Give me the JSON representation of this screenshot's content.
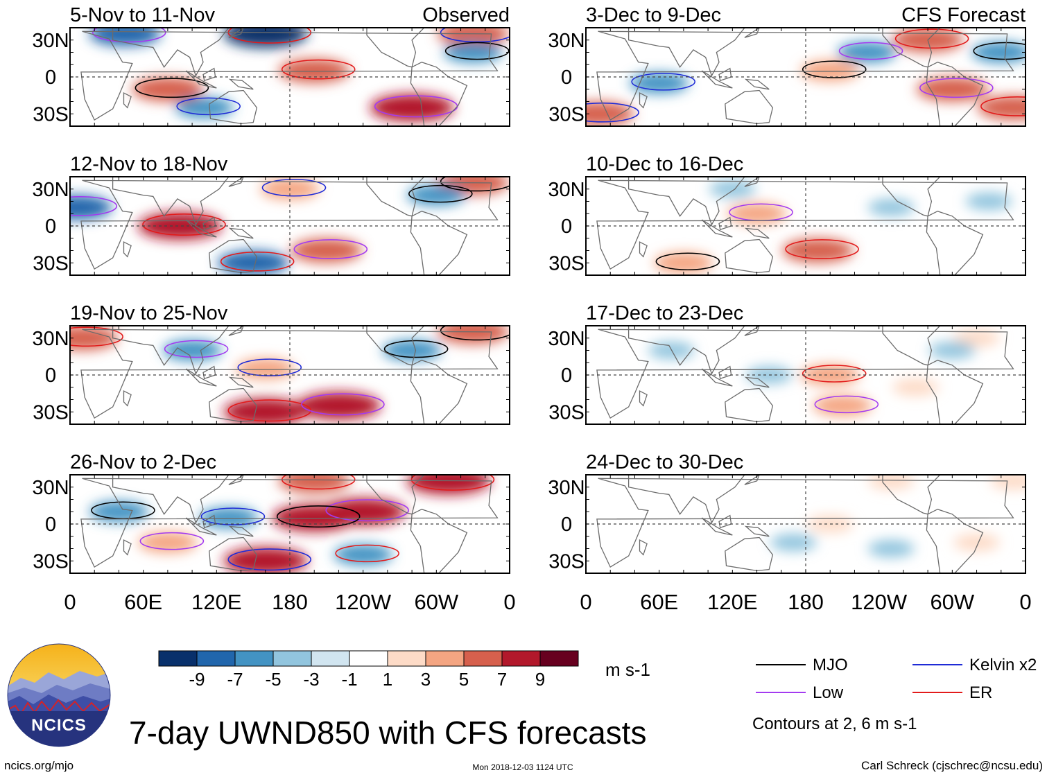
{
  "chart_data": {
    "type": "heatmap",
    "title": "7-day UWND850 with CFS forecasts",
    "variable": "850-hPa zonal wind anomaly",
    "units": "m s-1",
    "x_ticks": [
      "0",
      "60E",
      "120E",
      "180",
      "120W",
      "60W",
      "0"
    ],
    "y_ticks": [
      "30N",
      "0",
      "30S"
    ],
    "columns": [
      {
        "label": "Observed",
        "panels": [
          {
            "period": "5-Nov to 11-Nov",
            "anomaly_centers": [
              {
                "lon": 200,
                "lat": 5,
                "value": 7
              },
              {
                "lon": 280,
                "lat": -25,
                "value": 9
              },
              {
                "lon": 80,
                "lat": -10,
                "value": 7
              },
              {
                "lon": 330,
                "lat": 35,
                "value": 7
              },
              {
                "lon": 160,
                "lat": 35,
                "value": -9
              },
              {
                "lon": 45,
                "lat": 35,
                "value": -7
              },
              {
                "lon": 330,
                "lat": 20,
                "value": -5
              },
              {
                "lon": 110,
                "lat": -25,
                "value": -5
              }
            ]
          },
          {
            "period": "12-Nov to 18-Nov",
            "anomaly_centers": [
              {
                "lon": 90,
                "lat": 0,
                "value": 9
              },
              {
                "lon": 210,
                "lat": -20,
                "value": 7
              },
              {
                "lon": 330,
                "lat": 35,
                "value": 7
              },
              {
                "lon": 180,
                "lat": 30,
                "value": 5
              },
              {
                "lon": 150,
                "lat": -30,
                "value": -7
              },
              {
                "lon": 5,
                "lat": 15,
                "value": -7
              },
              {
                "lon": 300,
                "lat": 25,
                "value": -5
              }
            ]
          },
          {
            "period": "19-Nov to 25-Nov",
            "anomaly_centers": [
              {
                "lon": 160,
                "lat": -30,
                "value": 9
              },
              {
                "lon": 220,
                "lat": -25,
                "value": 9
              },
              {
                "lon": 330,
                "lat": 35,
                "value": 7
              },
              {
                "lon": 160,
                "lat": 5,
                "value": 5
              },
              {
                "lon": 10,
                "lat": 30,
                "value": 7
              },
              {
                "lon": 100,
                "lat": 20,
                "value": -5
              },
              {
                "lon": 280,
                "lat": 20,
                "value": -5
              }
            ]
          },
          {
            "period": "26-Nov to 2-Dec",
            "anomaly_centers": [
              {
                "lon": 310,
                "lat": 35,
                "value": 9
              },
              {
                "lon": 240,
                "lat": 10,
                "value": 9
              },
              {
                "lon": 200,
                "lat": 5,
                "value": 9
              },
              {
                "lon": 160,
                "lat": -30,
                "value": 9
              },
              {
                "lon": 200,
                "lat": 35,
                "value": 7
              },
              {
                "lon": 80,
                "lat": -15,
                "value": 5
              },
              {
                "lon": 40,
                "lat": 10,
                "value": -5
              },
              {
                "lon": 130,
                "lat": 5,
                "value": -5
              },
              {
                "lon": 240,
                "lat": -25,
                "value": -5
              }
            ]
          }
        ]
      },
      {
        "label": "CFS Forecast",
        "panels": [
          {
            "period": "3-Dec to 9-Dec",
            "anomaly_centers": [
              {
                "lon": 280,
                "lat": 30,
                "value": 7
              },
              {
                "lon": 300,
                "lat": -10,
                "value": 7
              },
              {
                "lon": 200,
                "lat": 5,
                "value": 5
              },
              {
                "lon": 10,
                "lat": -30,
                "value": 7
              },
              {
                "lon": 350,
                "lat": -25,
                "value": 7
              },
              {
                "lon": 230,
                "lat": 20,
                "value": -5
              },
              {
                "lon": 340,
                "lat": 20,
                "value": -5
              },
              {
                "lon": 60,
                "lat": -5,
                "value": -5
              }
            ]
          },
          {
            "period": "10-Dec to 16-Dec",
            "anomaly_centers": [
              {
                "lon": 190,
                "lat": -20,
                "value": 7
              },
              {
                "lon": 140,
                "lat": 10,
                "value": 5
              },
              {
                "lon": 80,
                "lat": -30,
                "value": 5
              },
              {
                "lon": 250,
                "lat": 15,
                "value": -3
              },
              {
                "lon": 330,
                "lat": 20,
                "value": -3
              },
              {
                "lon": 120,
                "lat": 30,
                "value": -3
              }
            ]
          },
          {
            "period": "17-Dec to 23-Dec",
            "anomaly_centers": [
              {
                "lon": 200,
                "lat": 0,
                "value": 5
              },
              {
                "lon": 210,
                "lat": -25,
                "value": 5
              },
              {
                "lon": 270,
                "lat": -10,
                "value": 3
              },
              {
                "lon": 320,
                "lat": 30,
                "value": 3
              },
              {
                "lon": 150,
                "lat": 0,
                "value": -3
              },
              {
                "lon": 70,
                "lat": 20,
                "value": -3
              },
              {
                "lon": 300,
                "lat": 20,
                "value": -3
              }
            ]
          },
          {
            "period": "24-Dec to 30-Dec",
            "anomaly_centers": [
              {
                "lon": 200,
                "lat": 0,
                "value": 3
              },
              {
                "lon": 250,
                "lat": 35,
                "value": 3
              },
              {
                "lon": 350,
                "lat": 35,
                "value": 3
              },
              {
                "lon": 320,
                "lat": -15,
                "value": 3
              },
              {
                "lon": 170,
                "lat": -15,
                "value": -3
              },
              {
                "lon": 250,
                "lat": -20,
                "value": -3
              }
            ]
          }
        ]
      }
    ],
    "colorbar": {
      "labels": [
        "-9",
        "-7",
        "-5",
        "-3",
        "-1",
        "1",
        "3",
        "5",
        "7",
        "9"
      ],
      "colors": [
        "#08306b",
        "#2166ac",
        "#4393c3",
        "#92c5de",
        "#d1e5f0",
        "#ffffff",
        "#fddbc7",
        "#f4a582",
        "#d6604d",
        "#b2182b",
        "#67001f"
      ],
      "units_label": "m s-1"
    },
    "legend": [
      {
        "label": "MJO",
        "color": "#000000"
      },
      {
        "label": "Kelvin x2",
        "color": "#1f2bd6"
      },
      {
        "label": "Low",
        "color": "#a33bf0"
      },
      {
        "label": "ER",
        "color": "#e21b1b"
      }
    ],
    "contour_note": "Contours at 2, 6 m s-1"
  },
  "footer": {
    "website": "ncics.org/mjo",
    "timestamp": "Mon 2018-12-03 1124 UTC",
    "author": "Carl Schreck (cjschrec@ncsu.edu)",
    "logo_text": "NCICS"
  }
}
